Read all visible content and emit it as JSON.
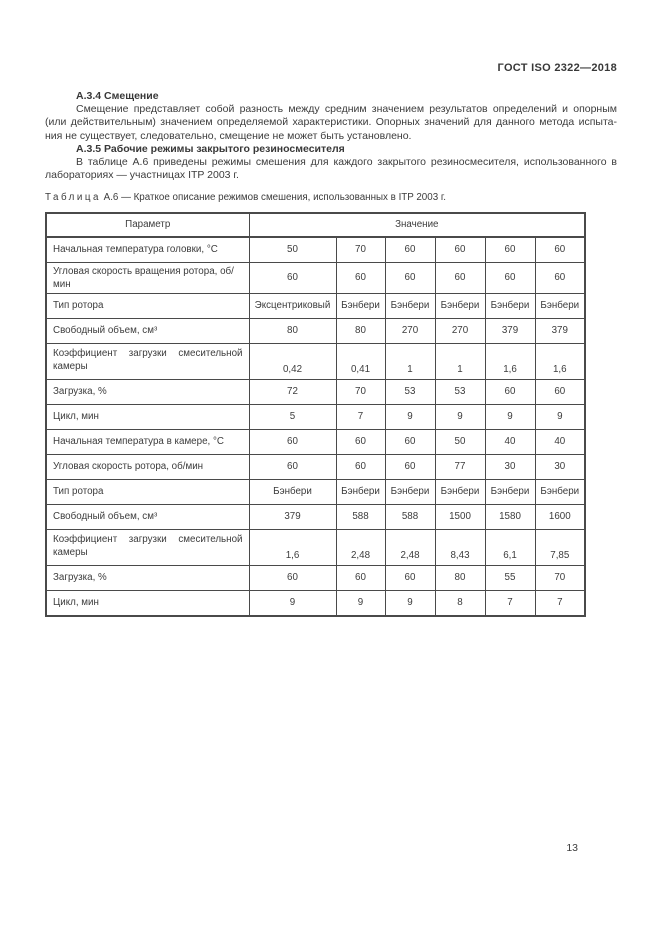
{
  "header": {
    "doc_title": "ГОСТ ISO 2322—2018"
  },
  "sections": [
    {
      "heading": "А.3.4 Смещение",
      "lines": [
        "Смещение представляет собой разность между средним значением результатов определений и опорным",
        "(или действительным) значением определяемой характеристики. Опорных значений для данного метода испыта-",
        "ния не существует, следовательно, смещение не может быть установлено."
      ]
    },
    {
      "heading": "А.3.5 Рабочие режимы закрытого резиносмесителя",
      "lines": [
        "В таблице А.6 приведены режимы смешения для каждого закрытого резиносмесителя, использованного в",
        "лабораториях — участницах ITP 2003 г."
      ]
    }
  ],
  "table": {
    "caption_word": "Таблица",
    "caption_rest": "А.6 — Краткое описание режимов смешения, использованных в ITP 2003 г.",
    "columns": {
      "param": "Параметр",
      "value": "Значение"
    },
    "rows": [
      {
        "param": "Начальная температура головки, °С",
        "values": [
          "50",
          "70",
          "60",
          "60",
          "60",
          "60"
        ]
      },
      {
        "param": "Угловая скорость вращения ротора, об/мин",
        "values": [
          "60",
          "60",
          "60",
          "60",
          "60",
          "60"
        ]
      },
      {
        "param": "Тип ротора",
        "values": [
          "Эксцентриковый",
          "Бэнбери",
          "Бэнбери",
          "Бэнбери",
          "Бэнбери",
          "Бэнбери"
        ]
      },
      {
        "param": "Свободный объем, см³",
        "values": [
          "80",
          "80",
          "270",
          "270",
          "379",
          "379"
        ]
      },
      {
        "param": "Коэффициент загрузки смесительной камеры",
        "values": [
          "0,42",
          "0,41",
          "1",
          "1",
          "1,6",
          "1,6"
        ],
        "tall": true
      },
      {
        "param": "Загрузка, %",
        "values": [
          "72",
          "70",
          "53",
          "53",
          "60",
          "60"
        ]
      },
      {
        "param": "Цикл, мин",
        "values": [
          "5",
          "7",
          "9",
          "9",
          "9",
          "9"
        ]
      },
      {
        "param": "Начальная температура в камере, °С",
        "values": [
          "60",
          "60",
          "60",
          "50",
          "40",
          "40"
        ]
      },
      {
        "param": "Угловая скорость ротора, об/мин",
        "values": [
          "60",
          "60",
          "60",
          "77",
          "30",
          "30"
        ]
      },
      {
        "param": "Тип ротора",
        "values": [
          "Бэнбери",
          "Бэнбери",
          "Бэнбери",
          "Бэнбери",
          "Бэнбери",
          "Бэнбери"
        ]
      },
      {
        "param": "Свободный объем, см³",
        "values": [
          "379",
          "588",
          "588",
          "1500",
          "1580",
          "1600"
        ]
      },
      {
        "param": "Коэффициент загрузки смесительной камеры",
        "values": [
          "1,6",
          "2,48",
          "2,48",
          "8,43",
          "6,1",
          "7,85"
        ],
        "tall": true
      },
      {
        "param": "Загрузка, %",
        "values": [
          "60",
          "60",
          "60",
          "80",
          "55",
          "70"
        ]
      },
      {
        "param": "Цикл, мин",
        "values": [
          "9",
          "9",
          "9",
          "8",
          "7",
          "7"
        ]
      }
    ]
  },
  "footer": {
    "page_number": "13"
  }
}
